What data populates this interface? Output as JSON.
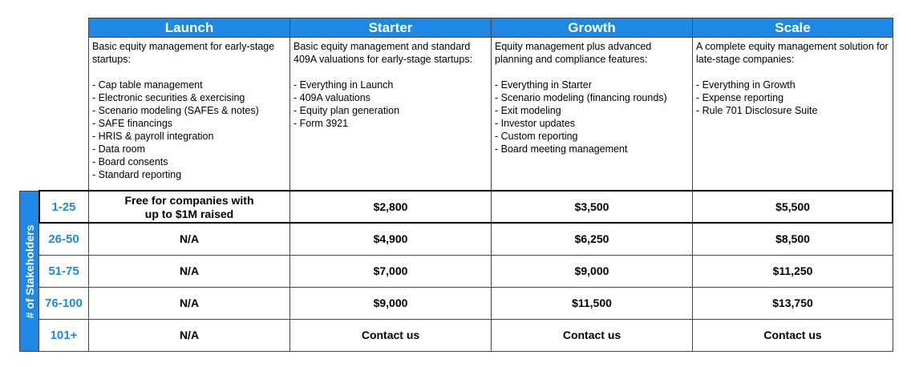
{
  "side_label": "# of Stakeholders",
  "plans": [
    {
      "name": "Launch",
      "intro": "Basic equity management for early-stage startups:",
      "features": [
        "- Cap table management",
        "- Electronic securities & exercising",
        "- Scenario modeling (SAFEs & notes)",
        "- SAFE financings",
        "- HRIS & payroll integration",
        "- Data room",
        "- Board consents",
        "- Standard reporting"
      ]
    },
    {
      "name": "Starter",
      "intro": "Basic equity management and standard 409A valuations for early-stage startups:",
      "features": [
        "- Everything in Launch",
        "- 409A valuations",
        "- Equity plan generation",
        "- Form 3921"
      ]
    },
    {
      "name": "Growth",
      "intro": "Equity management plus advanced planning and compliance features:",
      "features": [
        "- Everything in Starter",
        "- Scenario modeling (financing rounds)",
        "- Exit modeling",
        "- Investor updates",
        "- Custom reporting",
        "- Board meeting management"
      ]
    },
    {
      "name": "Scale",
      "intro": "A complete equity management solution for late-stage companies:",
      "features": [
        "- Everything in Growth",
        "- Expense reporting",
        "- Rule 701 Disclosure Suite"
      ]
    }
  ],
  "rows": [
    {
      "range": "1-25",
      "prices": [
        "Free for companies with up to $1M raised",
        "$2,800",
        "$3,500",
        "$5,500"
      ]
    },
    {
      "range": "26-50",
      "prices": [
        "N/A",
        "$4,900",
        "$6,250",
        "$8,500"
      ]
    },
    {
      "range": "51-75",
      "prices": [
        "N/A",
        "$7,000",
        "$9,000",
        "$11,250"
      ]
    },
    {
      "range": "76-100",
      "prices": [
        "N/A",
        "$9,000",
        "$11,500",
        "$13,750"
      ]
    },
    {
      "range": "101+",
      "prices": [
        "N/A",
        "Contact us",
        "Contact us",
        "Contact us"
      ]
    }
  ]
}
